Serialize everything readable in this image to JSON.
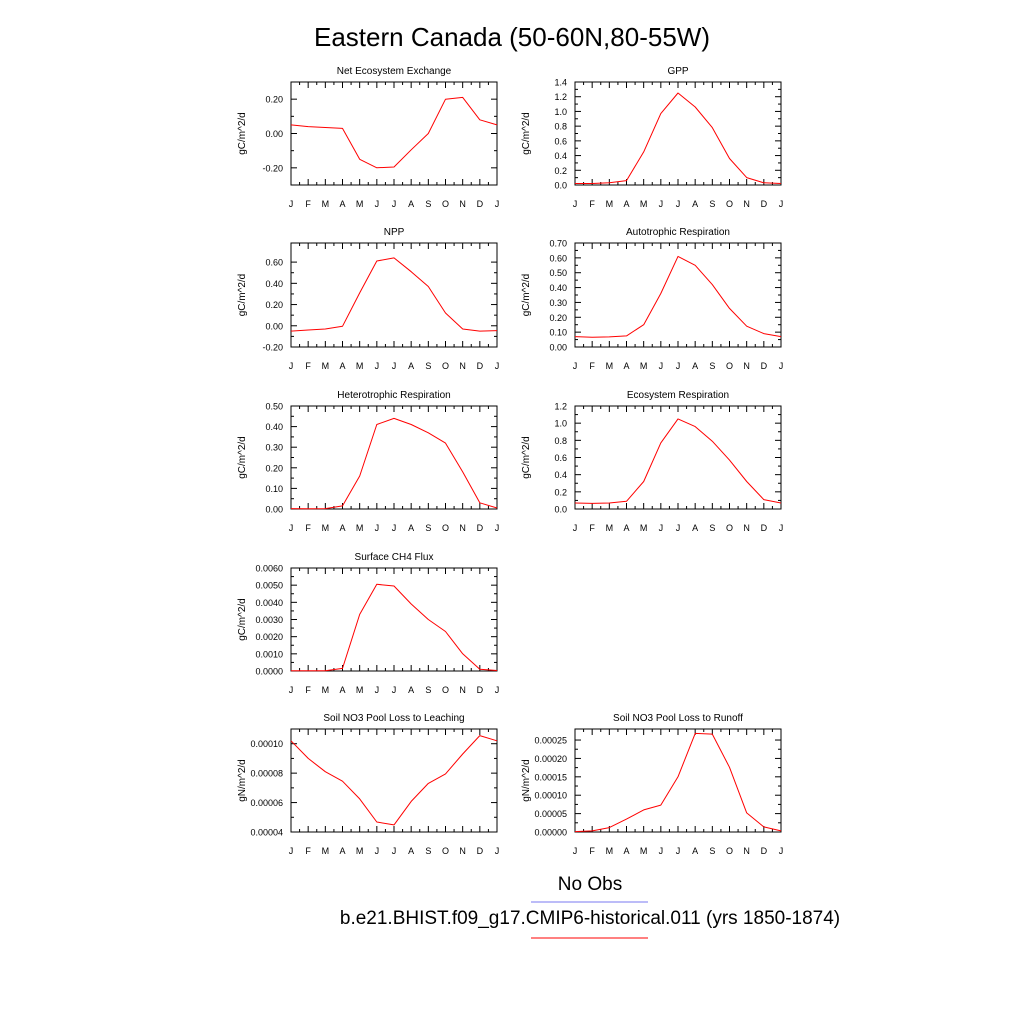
{
  "figure": {
    "title": "Eastern Canada (50-60N,80-55W)",
    "legend": [
      {
        "label": "No Obs",
        "color": "#7a7af0"
      },
      {
        "label": "b.e21.BHIST.f09_g17.CMIP6-historical.011 (yrs 1850-1874)",
        "color": "#ff0000"
      }
    ]
  },
  "chart_data": [
    {
      "type": "line",
      "title": "Net Ecosystem Exchange",
      "ylabel": "gC/m^2/d",
      "x": [
        "J",
        "F",
        "M",
        "A",
        "M",
        "J",
        "J",
        "A",
        "S",
        "O",
        "N",
        "D",
        "J"
      ],
      "series": [
        {
          "color": "#ff0000",
          "values": [
            0.05,
            0.04,
            0.035,
            0.03,
            -0.15,
            -0.2,
            -0.195,
            -0.095,
            0.0,
            0.2,
            0.21,
            0.08,
            0.05
          ]
        }
      ],
      "ylim": [
        -0.3,
        0.3
      ],
      "yticks": [
        -0.2,
        0.0,
        0.2
      ],
      "yticklabels": [
        "-0.20",
        "0.00",
        "0.20"
      ]
    },
    {
      "type": "line",
      "title": "GPP",
      "ylabel": "gC/m^2/d",
      "x": [
        "J",
        "F",
        "M",
        "A",
        "M",
        "J",
        "J",
        "A",
        "S",
        "O",
        "N",
        "D",
        "J"
      ],
      "series": [
        {
          "color": "#ff0000",
          "values": [
            0.02,
            0.02,
            0.03,
            0.06,
            0.45,
            0.97,
            1.25,
            1.06,
            0.78,
            0.36,
            0.1,
            0.03,
            0.02
          ]
        }
      ],
      "ylim": [
        0,
        1.4
      ],
      "yticks": [
        0,
        0.2,
        0.4,
        0.6,
        0.8,
        1.0,
        1.2,
        1.4
      ],
      "yticklabels": [
        "0.0",
        "0.2",
        "0.4",
        "0.6",
        "0.8",
        "1.0",
        "1.2",
        "1.4"
      ]
    },
    {
      "type": "line",
      "title": "NPP",
      "ylabel": "gC/m^2/d",
      "x": [
        "J",
        "F",
        "M",
        "A",
        "M",
        "J",
        "J",
        "A",
        "S",
        "O",
        "N",
        "D",
        "J"
      ],
      "series": [
        {
          "color": "#ff0000",
          "values": [
            -0.05,
            -0.04,
            -0.03,
            -0.005,
            0.31,
            0.61,
            0.64,
            0.51,
            0.37,
            0.12,
            -0.03,
            -0.05,
            -0.045
          ]
        }
      ],
      "ylim": [
        -0.2,
        0.78
      ],
      "yticks": [
        -0.2,
        0.0,
        0.2,
        0.4,
        0.6
      ],
      "yticklabels": [
        "-0.20",
        "0.00",
        "0.20",
        "0.40",
        "0.60"
      ]
    },
    {
      "type": "line",
      "title": "Autotrophic Respiration",
      "ylabel": "gC/m^2/d",
      "x": [
        "J",
        "F",
        "M",
        "A",
        "M",
        "J",
        "J",
        "A",
        "S",
        "O",
        "N",
        "D",
        "J"
      ],
      "series": [
        {
          "color": "#ff0000",
          "values": [
            0.07,
            0.065,
            0.068,
            0.075,
            0.15,
            0.36,
            0.61,
            0.55,
            0.42,
            0.26,
            0.14,
            0.09,
            0.07
          ]
        }
      ],
      "ylim": [
        0,
        0.7
      ],
      "yticks": [
        0,
        0.1,
        0.2,
        0.3,
        0.4,
        0.5,
        0.6,
        0.7
      ],
      "yticklabels": [
        "0.00",
        "0.10",
        "0.20",
        "0.30",
        "0.40",
        "0.50",
        "0.60",
        "0.70"
      ]
    },
    {
      "type": "line",
      "title": "Heterotrophic Respiration",
      "ylabel": "gC/m^2/d",
      "x": [
        "J",
        "F",
        "M",
        "A",
        "M",
        "J",
        "J",
        "A",
        "S",
        "O",
        "N",
        "D",
        "J"
      ],
      "series": [
        {
          "color": "#ff0000",
          "values": [
            0.002,
            0.001,
            0.002,
            0.015,
            0.16,
            0.41,
            0.44,
            0.41,
            0.37,
            0.32,
            0.18,
            0.03,
            0.005
          ]
        }
      ],
      "ylim": [
        0,
        0.5
      ],
      "yticks": [
        0,
        0.1,
        0.2,
        0.3,
        0.4,
        0.5
      ],
      "yticklabels": [
        "0.00",
        "0.10",
        "0.20",
        "0.30",
        "0.40",
        "0.50"
      ]
    },
    {
      "type": "line",
      "title": "Ecosystem Respiration",
      "ylabel": "gC/m^2/d",
      "x": [
        "J",
        "F",
        "M",
        "A",
        "M",
        "J",
        "J",
        "A",
        "S",
        "O",
        "N",
        "D",
        "J"
      ],
      "series": [
        {
          "color": "#ff0000",
          "values": [
            0.07,
            0.065,
            0.07,
            0.09,
            0.32,
            0.77,
            1.05,
            0.96,
            0.79,
            0.57,
            0.32,
            0.11,
            0.07
          ]
        }
      ],
      "ylim": [
        0,
        1.2
      ],
      "yticks": [
        0,
        0.2,
        0.4,
        0.6,
        0.8,
        1.0,
        1.2
      ],
      "yticklabels": [
        "0.0",
        "0.2",
        "0.4",
        "0.6",
        "0.8",
        "1.0",
        "1.2"
      ]
    },
    {
      "type": "line",
      "title": "Surface CH4 Flux",
      "ylabel": "gC/m^2/d",
      "x": [
        "J",
        "F",
        "M",
        "A",
        "M",
        "J",
        "J",
        "A",
        "S",
        "O",
        "N",
        "D",
        "J"
      ],
      "series": [
        {
          "color": "#ff0000",
          "values": [
            2e-05,
            1e-05,
            2e-05,
            0.00015,
            0.0033,
            0.00505,
            0.00495,
            0.0039,
            0.003,
            0.0023,
            0.001,
            0.0001,
            3e-05
          ]
        }
      ],
      "ylim": [
        0,
        0.006
      ],
      "yticks": [
        0,
        0.001,
        0.002,
        0.003,
        0.004,
        0.005,
        0.006
      ],
      "yticklabels": [
        "0.0000",
        "0.0010",
        "0.0020",
        "0.0030",
        "0.0040",
        "0.0050",
        "0.0060"
      ]
    },
    {
      "type": "line",
      "title": "Soil NO3 Pool Loss to Leaching",
      "ylabel": "gN/m^2/d",
      "x": [
        "J",
        "F",
        "M",
        "A",
        "M",
        "J",
        "J",
        "A",
        "S",
        "O",
        "N",
        "D",
        "J"
      ],
      "series": [
        {
          "color": "#ff0000",
          "values": [
            0.000102,
            9e-05,
            8.1e-05,
            7.45e-05,
            6.25e-05,
            4.68e-05,
            4.48e-05,
            6.08e-05,
            7.3e-05,
            7.95e-05,
            9.3e-05,
            0.0001055,
            0.000102
          ]
        }
      ],
      "ylim": [
        4e-05,
        0.00011
      ],
      "yticks": [
        4e-05,
        6e-05,
        8e-05,
        0.0001
      ],
      "yticklabels": [
        "0.00004",
        "0.00006",
        "0.00008",
        "0.00010"
      ]
    },
    {
      "type": "line",
      "title": "Soil NO3 Pool Loss to Runoff",
      "ylabel": "gN/m^2/d",
      "x": [
        "J",
        "F",
        "M",
        "A",
        "M",
        "J",
        "J",
        "A",
        "S",
        "O",
        "N",
        "D",
        "J"
      ],
      "series": [
        {
          "color": "#ff0000",
          "values": [
            1e-06,
            3e-06,
            1.2e-05,
            3.5e-05,
            6e-05,
            7.3e-05,
            0.00015,
            0.000268,
            0.000266,
            0.000176,
            5.2e-05,
            1.4e-05,
            3e-06
          ]
        }
      ],
      "ylim": [
        0,
        0.00028
      ],
      "yticks": [
        0,
        5e-05,
        0.0001,
        0.00015,
        0.0002,
        0.00025
      ],
      "yticklabels": [
        "0.00000",
        "0.00005",
        "0.00010",
        "0.00015",
        "0.00020",
        "0.00025"
      ]
    }
  ]
}
